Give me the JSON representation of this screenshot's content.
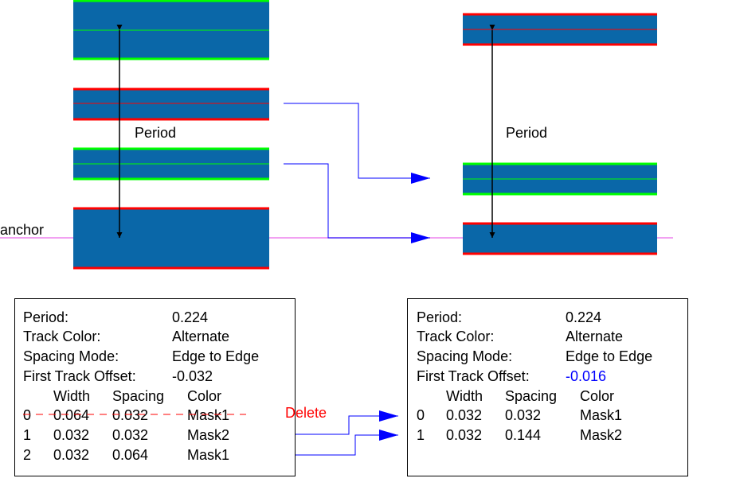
{
  "diagram": {
    "period_label_left": "Period",
    "period_label_right": "Period",
    "anchor_label": "anchor",
    "delete_label": "Delete",
    "colors": {
      "track_fill": "#0a67a8",
      "mask1_edge": "#ff0000",
      "mask2_edge": "#00ff00",
      "anchor_line": "#ee82ee",
      "connector": "#0000ff",
      "delete_strike": "#ff0000"
    }
  },
  "before_panel": {
    "period_label": "Period:",
    "period_value": "0.224",
    "track_color_label": "Track Color:",
    "track_color_value": "Alternate",
    "spacing_mode_label": "Spacing Mode:",
    "spacing_mode_value": "Edge to Edge",
    "first_track_offset_label": "First Track Offset:",
    "first_track_offset_value": "-0.032",
    "headers": {
      "width": "Width",
      "spacing": "Spacing",
      "color": "Color"
    },
    "rows": [
      {
        "index": "0",
        "width": "0.064",
        "spacing": "0.032",
        "color": "Mask1"
      },
      {
        "index": "1",
        "width": "0.032",
        "spacing": "0.032",
        "color": "Mask2"
      },
      {
        "index": "2",
        "width": "0.032",
        "spacing": "0.064",
        "color": "Mask1"
      }
    ]
  },
  "after_panel": {
    "period_label": "Period:",
    "period_value": "0.224",
    "track_color_label": "Track Color:",
    "track_color_value": "Alternate",
    "spacing_mode_label": "Spacing Mode:",
    "spacing_mode_value": "Edge to Edge",
    "first_track_offset_label": "First Track Offset:",
    "first_track_offset_value": "-0.016",
    "headers": {
      "width": "Width",
      "spacing": "Spacing",
      "color": "Color"
    },
    "rows": [
      {
        "index": "0",
        "width": "0.032",
        "spacing": "0.032",
        "color": "Mask1"
      },
      {
        "index": "1",
        "width": "0.032",
        "spacing": "0.144",
        "color": "Mask2"
      }
    ]
  }
}
